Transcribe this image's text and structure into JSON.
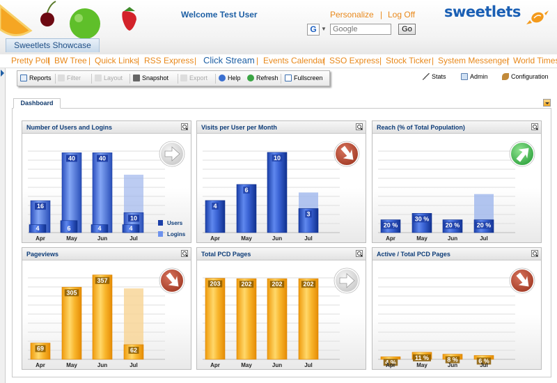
{
  "header": {
    "showcase_tab": "Sweetlets Showcase",
    "welcome": "Welcome Test User",
    "personalize": "Personalize",
    "separator": "|",
    "log_off": "Log Off",
    "search_provider": "G",
    "search_placeholder": "Google",
    "go_label": "Go",
    "logo_text": "sweetlets"
  },
  "nav": {
    "items": [
      "Pretty Poll",
      "BW Tree",
      "Quick Links",
      "RSS Express",
      "Click Stream",
      "Events Calendar",
      "SSO Express",
      "Stock Ticker",
      "System Messenger",
      "World Times"
    ],
    "active": "Click Stream",
    "separator": "|"
  },
  "toolbar": {
    "reports": "Reports",
    "filter": "Filter",
    "layout": "Layout",
    "snapshot": "Snapshot",
    "export": "Export",
    "help": "Help",
    "refresh": "Refresh",
    "fullscreen": "Fullscreen"
  },
  "right_tools": {
    "stats": "Stats",
    "admin": "Admin",
    "configuration": "Configuration"
  },
  "dashboard": {
    "tab": "Dashboard"
  },
  "colors": {
    "blue_bar": "#3f64d2",
    "orange_bar": "#f7b12b",
    "trend_grey": "#c9c9c9",
    "trend_red": "#a03a25",
    "trend_green": "#2fa33e",
    "link_orange": "#e8881a",
    "title_blue": "#0d3c78"
  },
  "chart_data": [
    {
      "type": "bar",
      "title": "Number of Users and Logins",
      "categories": [
        "Apr",
        "May",
        "Jun",
        "Jul"
      ],
      "series": [
        {
          "name": "Users",
          "values": [
            4,
            6,
            4,
            4
          ]
        },
        {
          "name": "Logins",
          "values": [
            16,
            40,
            40,
            10
          ]
        }
      ],
      "ylim": [
        0,
        45
      ],
      "palette": "blue",
      "trend_icon": "arrow-right-icon",
      "trend_color": "grey",
      "legend": "bottom-right",
      "grid": true
    },
    {
      "type": "bar",
      "title": "Visits per User per Month",
      "categories": [
        "Apr",
        "May",
        "Jun",
        "Jul"
      ],
      "values": [
        4,
        6,
        10,
        3
      ],
      "ylim": [
        0,
        11.2
      ],
      "palette": "blue",
      "trend_icon": "arrow-down-right-icon",
      "trend_color": "red",
      "grid": true
    },
    {
      "type": "bar",
      "title": "Reach (% of Total Population)",
      "categories": [
        "Apr",
        "May",
        "Jun",
        "Jul"
      ],
      "values": [
        20,
        30,
        20,
        20
      ],
      "value_labels": [
        "20 %",
        "30 %",
        "20 %",
        "20 %"
      ],
      "ylim": [
        0,
        140
      ],
      "palette": "blue",
      "trend_icon": "arrow-up-right-icon",
      "trend_color": "green",
      "grid": true
    },
    {
      "type": "bar",
      "title": "Pageviews",
      "categories": [
        "Apr",
        "May",
        "Jun",
        "Jul"
      ],
      "values": [
        69,
        305,
        357,
        62
      ],
      "ylim": [
        0,
        380
      ],
      "palette": "orange",
      "trend_icon": "arrow-down-right-icon",
      "trend_color": "red",
      "grid": true
    },
    {
      "type": "bar",
      "title": "Total PCD Pages",
      "categories": [
        "Apr",
        "May",
        "Jun",
        "Jul"
      ],
      "values": [
        203,
        202,
        202,
        202
      ],
      "ylim": [
        0,
        225
      ],
      "palette": "orange",
      "trend_icon": "arrow-right-icon",
      "trend_color": "grey",
      "grid": true
    },
    {
      "type": "bar",
      "title": "Active / Total PCD Pages",
      "categories": [
        "Apr",
        "May",
        "Jun",
        "Jul"
      ],
      "values": [
        4,
        11,
        8,
        6
      ],
      "value_labels": [
        "4 %",
        "11 %",
        "8 %",
        "6 %"
      ],
      "ylim": [
        0,
        140
      ],
      "palette": "orange",
      "trend_icon": "arrow-down-right-icon",
      "trend_color": "red",
      "grid": true
    }
  ]
}
